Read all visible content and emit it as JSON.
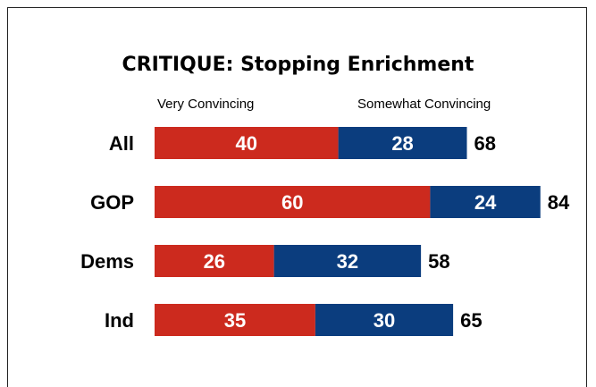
{
  "chart_data": {
    "type": "bar",
    "orientation": "horizontal",
    "stacked": true,
    "title": "CRITIQUE: Stopping Enrichment",
    "categories": [
      "All",
      "GOP",
      "Dems",
      "Ind"
    ],
    "series": [
      {
        "name": "Very Convincing",
        "values": [
          40,
          60,
          26,
          35
        ],
        "color": "#cc2a1e"
      },
      {
        "name": "Somewhat Convincing",
        "values": [
          28,
          24,
          32,
          30
        ],
        "color": "#0b3d7e"
      }
    ],
    "totals": [
      68,
      84,
      58,
      65
    ],
    "legend_placement": "top",
    "grid": false
  }
}
